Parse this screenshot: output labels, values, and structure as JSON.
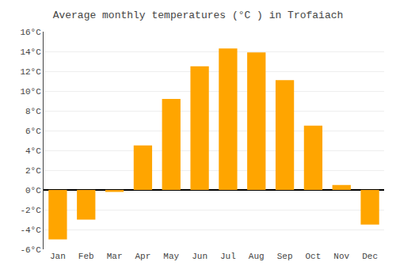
{
  "chart_data": {
    "type": "bar",
    "title": "Average monthly temperatures (°C ) in Trofaiach",
    "categories": [
      "Jan",
      "Feb",
      "Mar",
      "Apr",
      "May",
      "Jun",
      "Jul",
      "Aug",
      "Sep",
      "Oct",
      "Nov",
      "Dec"
    ],
    "values": [
      -5.0,
      -3.0,
      -0.2,
      4.5,
      9.2,
      12.5,
      14.3,
      13.9,
      11.1,
      6.5,
      0.5,
      -3.5
    ],
    "color": "#FFA500",
    "ylim": [
      -6,
      16
    ],
    "yticks": [
      {
        "value": -6,
        "label": "-6°C"
      },
      {
        "value": -4,
        "label": "-4°C"
      },
      {
        "value": -2,
        "label": "-2°C"
      },
      {
        "value": 0,
        "label": "0°C"
      },
      {
        "value": 2,
        "label": "2°C"
      },
      {
        "value": 4,
        "label": "4°C"
      },
      {
        "value": 6,
        "label": "6°C"
      },
      {
        "value": 8,
        "label": "8°C"
      },
      {
        "value": 10,
        "label": "10°C"
      },
      {
        "value": 12,
        "label": "12°C"
      },
      {
        "value": 14,
        "label": "14°C"
      },
      {
        "value": 16,
        "label": "16°C"
      }
    ],
    "grid": true
  }
}
